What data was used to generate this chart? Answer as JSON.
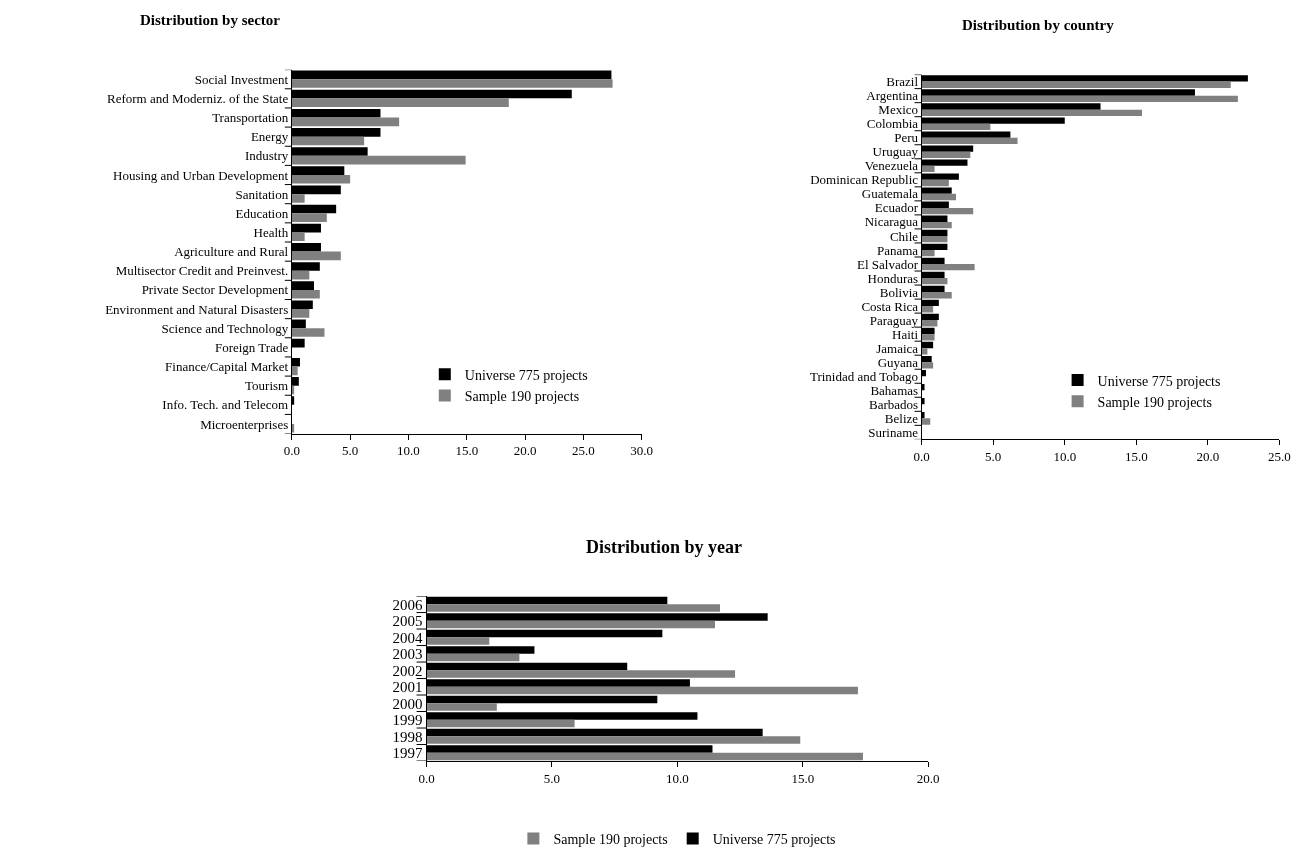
{
  "chart_data": [
    {
      "type": "bar",
      "orientation": "horizontal",
      "title": "Distribution by sector",
      "legend": "bottom right",
      "categories": [
        "Social Investment",
        "Reform and Moderniz. of the State",
        "Transportation",
        "Energy",
        "Industry",
        "Housing and Urban Development",
        "Sanitation",
        "Education",
        "Health",
        "Agriculture and Rural",
        "Multisector Credit and Preinvest.",
        "Private Sector Development",
        "Environment and Natural Disasters",
        "Science and Technology",
        "Foreign Trade",
        "Finance/Capital Market",
        "Tourism",
        "Info. Tech. and Telecom",
        "Microenterprises"
      ],
      "xlim": [
        0,
        30
      ],
      "xticks": [
        {
          "value": 0,
          "label": "0.0"
        },
        {
          "value": 5,
          "label": "5.0"
        },
        {
          "value": 10,
          "label": "10.0"
        },
        {
          "value": 15,
          "label": "15.0"
        },
        {
          "value": 20,
          "label": "20.0"
        },
        {
          "value": 25,
          "label": "25.0"
        },
        {
          "value": 30,
          "label": "30.0"
        }
      ],
      "series": [
        {
          "name": "Universe 775 projects",
          "color": "#000000",
          "values": [
            27.4,
            24.0,
            7.6,
            7.6,
            6.5,
            4.5,
            4.2,
            3.8,
            2.5,
            2.5,
            2.4,
            1.9,
            1.8,
            1.2,
            1.1,
            0.7,
            0.6,
            0.2,
            0
          ]
        },
        {
          "name": "Sample 190 projects",
          "color": "#808080",
          "values": [
            27.5,
            18.6,
            9.2,
            6.2,
            14.9,
            5.0,
            1.1,
            3.0,
            1.1,
            4.2,
            1.5,
            2.4,
            1.5,
            2.8,
            0,
            0.5,
            0.2,
            0,
            0.2
          ]
        }
      ]
    },
    {
      "type": "bar",
      "orientation": "horizontal",
      "title": "Distribution by country",
      "legend": "bottom right",
      "categories": [
        "Brazil",
        "Argentina",
        "Mexico",
        "Colombia",
        "Peru",
        "Uruguay",
        "Venezuela",
        "Dominican Republic",
        "Guatemala",
        "Ecuador",
        "Nicaragua",
        "Chile",
        "Panama",
        "El Salvador",
        "Honduras",
        "Bolivia",
        "Costa Rica",
        "Paraguay",
        "Haiti",
        "Jamaica",
        "Guyana",
        "Trinidad and Tobago",
        "Bahamas",
        "Barbados",
        "Belize",
        "Suriname"
      ],
      "xlim": [
        0,
        25
      ],
      "xticks": [
        {
          "value": 0,
          "label": "0.0"
        },
        {
          "value": 5,
          "label": "5.0"
        },
        {
          "value": 10,
          "label": "10.0"
        },
        {
          "value": 15,
          "label": "15.0"
        },
        {
          "value": 20,
          "label": "20.0"
        },
        {
          "value": 25,
          "label": "25.0"
        }
      ],
      "series": [
        {
          "name": "Universe 775 projects",
          "color": "#000000",
          "values": [
            22.8,
            19.1,
            12.5,
            10.0,
            6.2,
            3.6,
            3.2,
            2.6,
            2.1,
            1.9,
            1.8,
            1.8,
            1.8,
            1.6,
            1.6,
            1.6,
            1.2,
            1.2,
            0.9,
            0.8,
            0.7,
            0.3,
            0.2,
            0.2,
            0.2,
            0
          ]
        },
        {
          "name": "Sample 190 projects",
          "color": "#808080",
          "values": [
            21.6,
            22.1,
            15.4,
            4.8,
            6.7,
            3.4,
            0.9,
            1.9,
            2.4,
            3.6,
            2.1,
            1.8,
            0.9,
            3.7,
            1.8,
            2.1,
            0.8,
            1.1,
            0.9,
            0.4,
            0.8,
            0,
            0,
            0,
            0.6,
            0
          ]
        }
      ]
    },
    {
      "type": "bar",
      "orientation": "horizontal",
      "title": "Distribution by year",
      "legend": "bottom",
      "categories": [
        "2006",
        "2005",
        "2004",
        "2003",
        "2002",
        "2001",
        "2000",
        "1999",
        "1998",
        "1997"
      ],
      "xlim": [
        0,
        20
      ],
      "xticks": [
        {
          "value": 0,
          "label": "0.0"
        },
        {
          "value": 5,
          "label": "5.0"
        },
        {
          "value": 10,
          "label": "10.0"
        },
        {
          "value": 15,
          "label": "15.0"
        },
        {
          "value": 20,
          "label": "20.0"
        }
      ],
      "series": [
        {
          "name": "Universe 775 projects",
          "color": "#000000",
          "values": [
            9.6,
            13.6,
            9.4,
            4.3,
            8.0,
            10.5,
            9.2,
            10.8,
            13.4,
            11.4
          ]
        },
        {
          "name": "Sample 190 projects",
          "color": "#808080",
          "values": [
            11.7,
            11.5,
            2.5,
            3.7,
            12.3,
            17.2,
            2.8,
            5.9,
            14.9,
            17.4
          ]
        }
      ]
    }
  ]
}
